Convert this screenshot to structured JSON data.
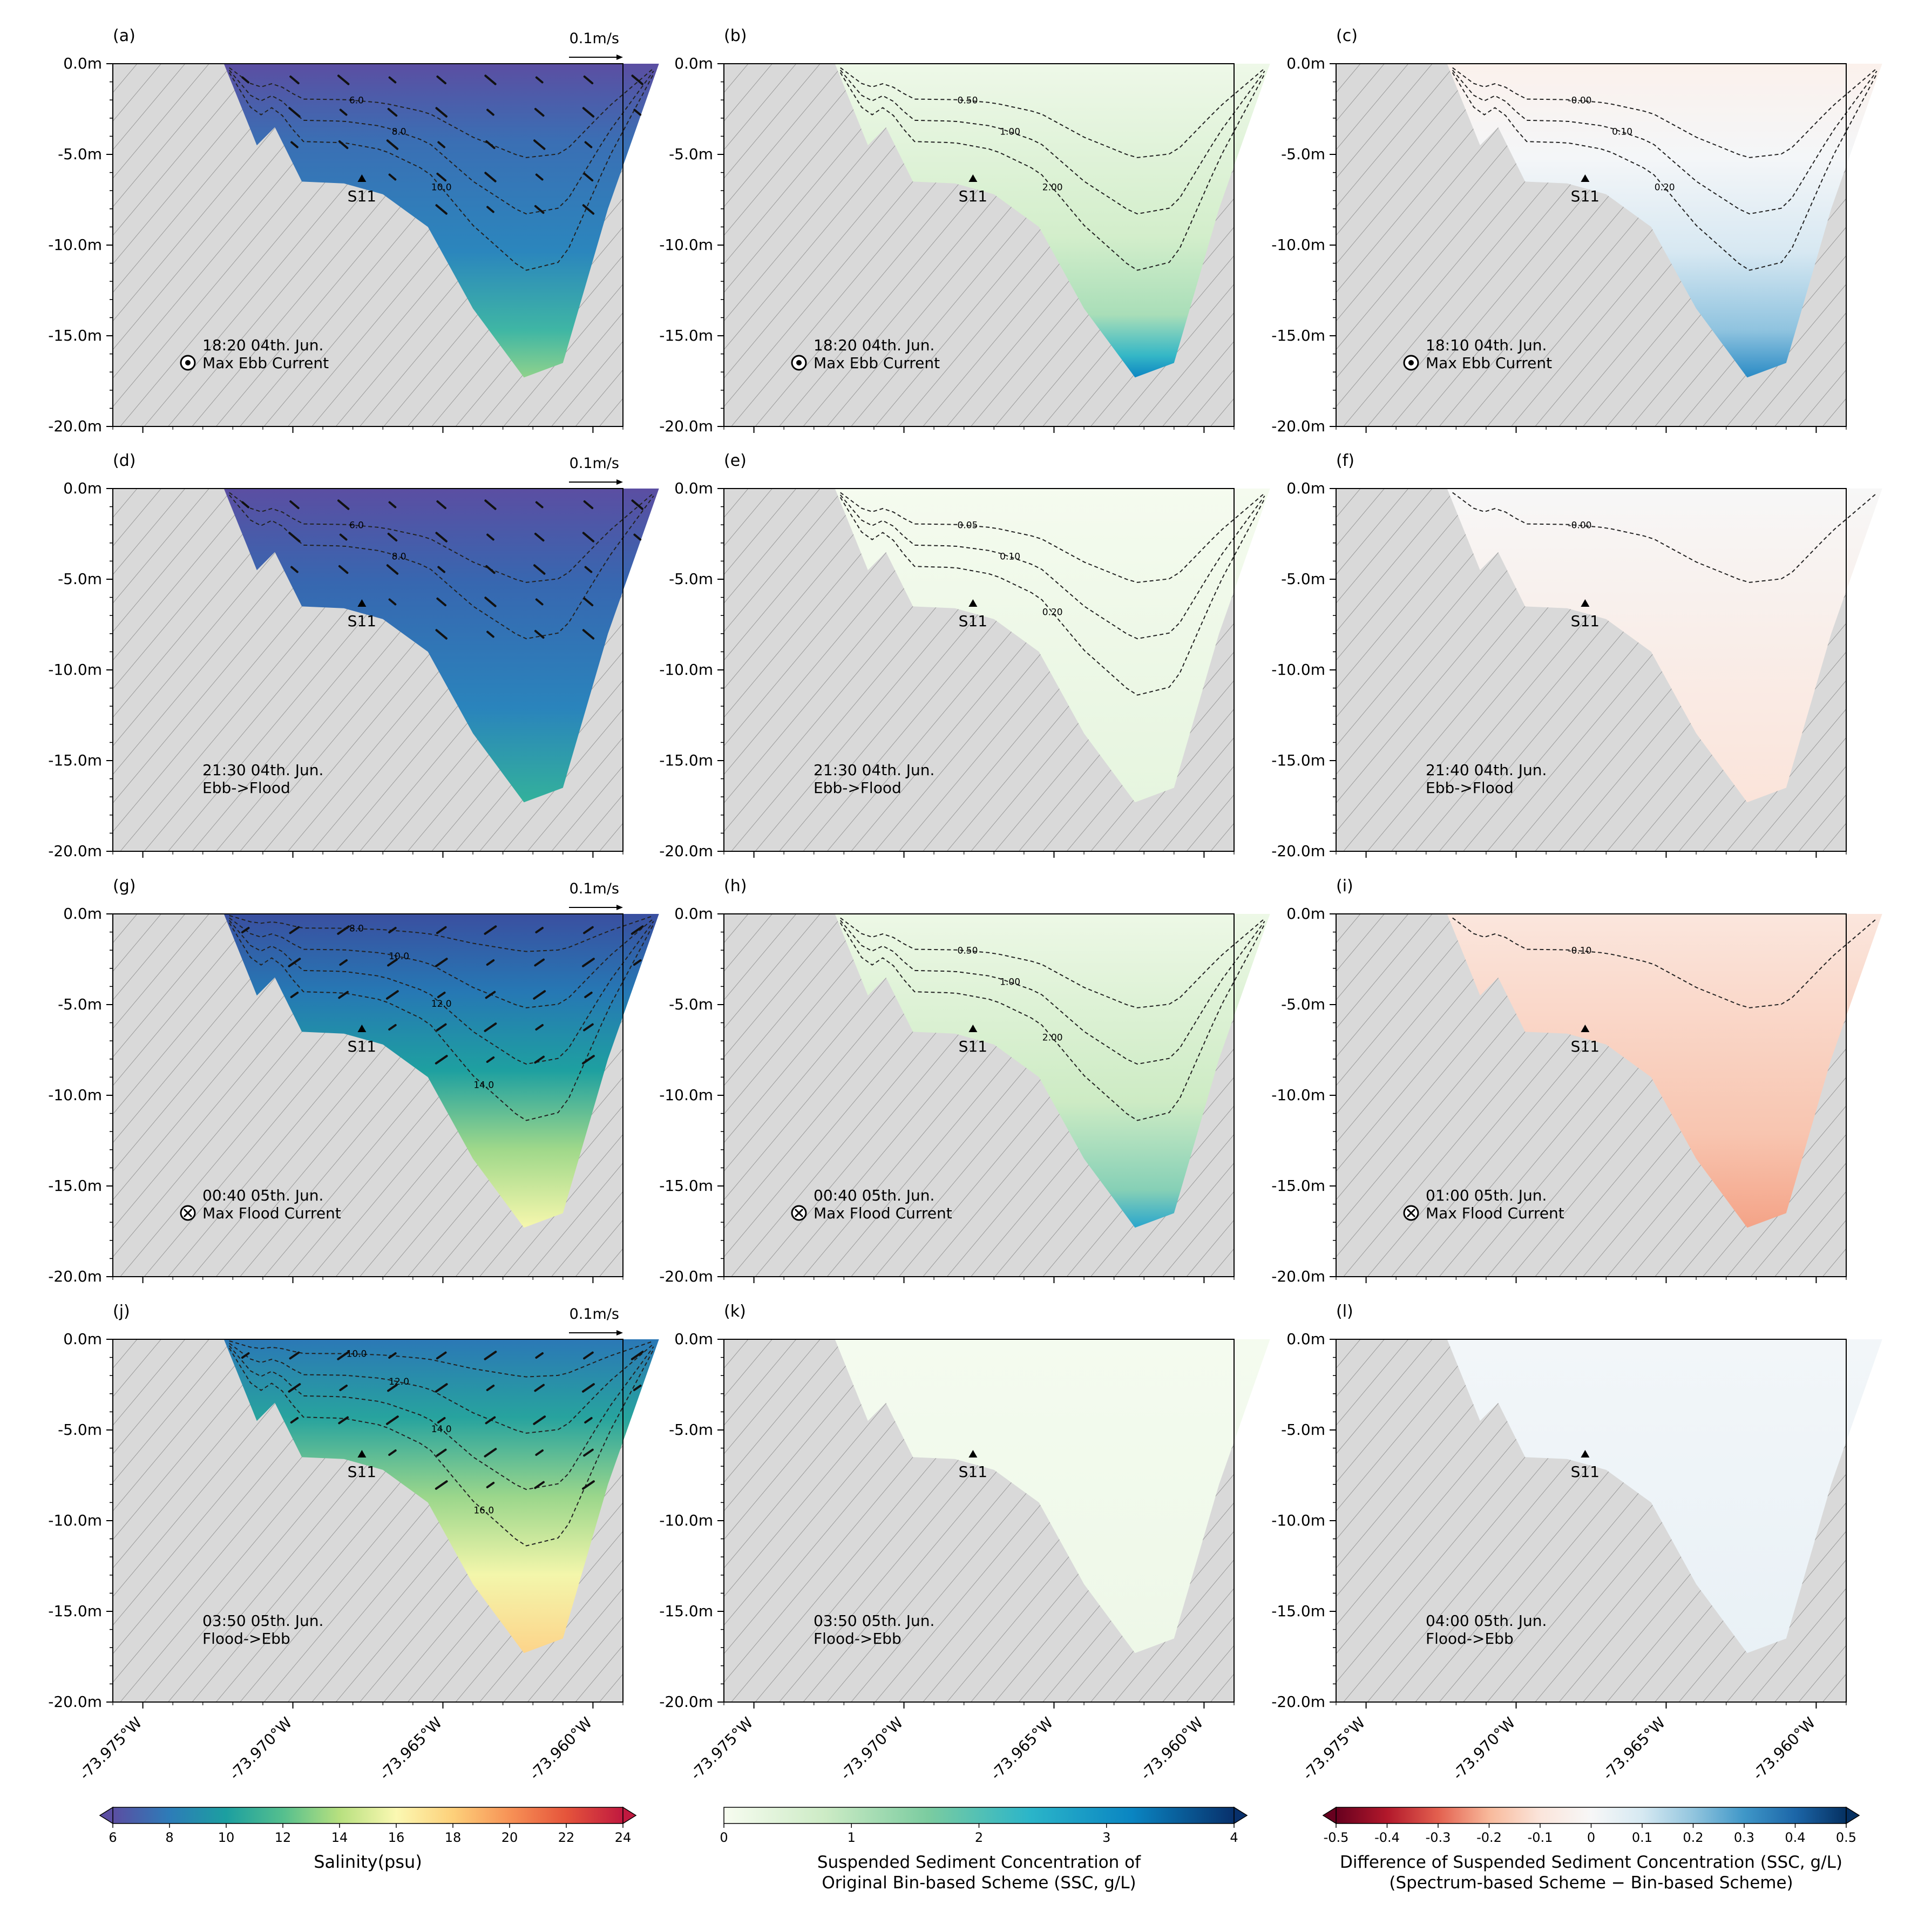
{
  "chart_data": {
    "type": "section-contour",
    "figure_title": "",
    "y_axis": {
      "ticks": [
        0,
        -5,
        -10,
        -15,
        -20
      ],
      "tick_labels": [
        "0.0m",
        "-5.0m",
        "-10.0m",
        "-15.0m",
        "-20.0m"
      ],
      "ylim": [
        -20,
        0
      ]
    },
    "x_axis": {
      "ticks": [
        -73.975,
        -73.97,
        -73.965,
        -73.96
      ],
      "tick_labels": [
        "-73.975°W",
        "-73.970°W",
        "-73.965°W",
        "-73.960°W"
      ],
      "xlim": [
        -73.976,
        -73.959
      ]
    },
    "station": {
      "label": "S11",
      "lon": -73.9677,
      "depth": -6.4
    },
    "bathymetry": [
      [
        -73.9723,
        0
      ],
      [
        -73.9712,
        -4.5
      ],
      [
        -73.9706,
        -3.5
      ],
      [
        -73.9697,
        -6.5
      ],
      [
        -73.9683,
        -6.6
      ],
      [
        -73.967,
        -7.2
      ],
      [
        -73.9655,
        -9.0
      ],
      [
        -73.964,
        -13.5
      ],
      [
        -73.9623,
        -17.3
      ],
      [
        -73.961,
        -16.5
      ],
      [
        -73.9595,
        -8.0
      ],
      [
        -73.9578,
        0
      ]
    ],
    "vector_scale_label": "0.1m/s",
    "colorbars": [
      {
        "ticks": [
          "6",
          "8",
          "10",
          "12",
          "14",
          "16",
          "18",
          "20",
          "22",
          "24"
        ],
        "label": "Salinity(psu)",
        "range": [
          6,
          24
        ],
        "colors": [
          "#5b4ea2",
          "#2d7cb8",
          "#1c9fa0",
          "#54bf8e",
          "#b7e07f",
          "#fbf8b2",
          "#fdd07a",
          "#f79256",
          "#e5543b",
          "#c0193f"
        ]
      },
      {
        "ticks": [
          "0",
          "1",
          "2",
          "3",
          "4"
        ],
        "label_lines": [
          "Suspended Sediment Concentration of",
          "Original Bin-based Scheme (SSC, g/L)"
        ],
        "range": [
          0,
          4
        ],
        "colors": [
          "#f7fcf0",
          "#ccebc5",
          "#7bcca0",
          "#2bb5c9",
          "#0a85c2",
          "#08306b"
        ]
      },
      {
        "ticks": [
          "-0.5",
          "-0.4",
          "-0.3",
          "-0.2",
          "-0.1",
          "0",
          "0.1",
          "0.2",
          "0.3",
          "0.4",
          "0.5"
        ],
        "label_lines": [
          "Difference of Suspended Sediment Concentration (SSC, g/L)",
          "(Spectrum-based Scheme − Bin-based Scheme)"
        ],
        "range": [
          -0.5,
          0.5
        ],
        "colors": [
          "#67001f",
          "#b2182b",
          "#e3604f",
          "#f8b99b",
          "#fbe5db",
          "#f7f7f7",
          "#d6e9f2",
          "#92c5de",
          "#3f97c8",
          "#1c66a8",
          "#053061"
        ]
      }
    ],
    "panels": [
      {
        "id": "a",
        "label": "(a)",
        "col": 0,
        "row": 0,
        "time": "18:20 04th. Jun.",
        "state": "Max Ebb Current",
        "symbol": "out",
        "vectors": true,
        "contours": [
          "6.0",
          "8.0",
          "10.0"
        ]
      },
      {
        "id": "b",
        "label": "(b)",
        "col": 1,
        "row": 0,
        "time": "18:20 04th. Jun.",
        "state": "Max Ebb Current",
        "symbol": "out",
        "vectors": false,
        "contours": [
          "0.50",
          "1.00",
          "2.00"
        ]
      },
      {
        "id": "c",
        "label": "(c)",
        "col": 2,
        "row": 0,
        "time": "18:10 04th. Jun.",
        "state": "Max Ebb Current",
        "symbol": "out",
        "vectors": false,
        "contours": [
          "-0.00",
          "0.10",
          "0.20"
        ]
      },
      {
        "id": "d",
        "label": "(d)",
        "col": 0,
        "row": 1,
        "time": "21:30 04th. Jun.",
        "state": "Ebb->Flood",
        "symbol": "",
        "vectors": true,
        "contours": [
          "6.0",
          "8.0"
        ]
      },
      {
        "id": "e",
        "label": "(e)",
        "col": 1,
        "row": 1,
        "time": "21:30 04th. Jun.",
        "state": "Ebb->Flood",
        "symbol": "",
        "vectors": false,
        "contours": [
          "0.05",
          "0.10",
          "0.20"
        ]
      },
      {
        "id": "f",
        "label": "(f)",
        "col": 2,
        "row": 1,
        "time": "21:40 04th. Jun.",
        "state": "Ebb->Flood",
        "symbol": "",
        "vectors": false,
        "contours": [
          "-0.00"
        ]
      },
      {
        "id": "g",
        "label": "(g)",
        "col": 0,
        "row": 2,
        "time": "00:40 05th. Jun.",
        "state": "Max Flood Current",
        "symbol": "in",
        "vectors": true,
        "contours": [
          "8.0",
          "10.0",
          "12.0",
          "14.0"
        ]
      },
      {
        "id": "h",
        "label": "(h)",
        "col": 1,
        "row": 2,
        "time": "00:40 05th. Jun.",
        "state": "Max Flood Current",
        "symbol": "in",
        "vectors": false,
        "contours": [
          "0.50",
          "1.00",
          "2.00"
        ]
      },
      {
        "id": "i",
        "label": "(i)",
        "col": 2,
        "row": 2,
        "time": "01:00 05th. Jun.",
        "state": "Max Flood Current",
        "symbol": "in",
        "vectors": false,
        "contours": [
          "-0.10"
        ]
      },
      {
        "id": "j",
        "label": "(j)",
        "col": 0,
        "row": 3,
        "time": "03:50 05th. Jun.",
        "state": "Flood->Ebb",
        "symbol": "",
        "vectors": true,
        "contours": [
          "10.0",
          "12.0",
          "14.0",
          "16.0"
        ]
      },
      {
        "id": "k",
        "label": "(k)",
        "col": 1,
        "row": 3,
        "time": "03:50 05th. Jun.",
        "state": "Flood->Ebb",
        "symbol": "",
        "vectors": false,
        "contours": []
      },
      {
        "id": "l",
        "label": "(l)",
        "col": 2,
        "row": 3,
        "time": "04:00 05th. Jun.",
        "state": "Flood->Ebb",
        "symbol": "",
        "vectors": false,
        "contours": []
      }
    ]
  }
}
